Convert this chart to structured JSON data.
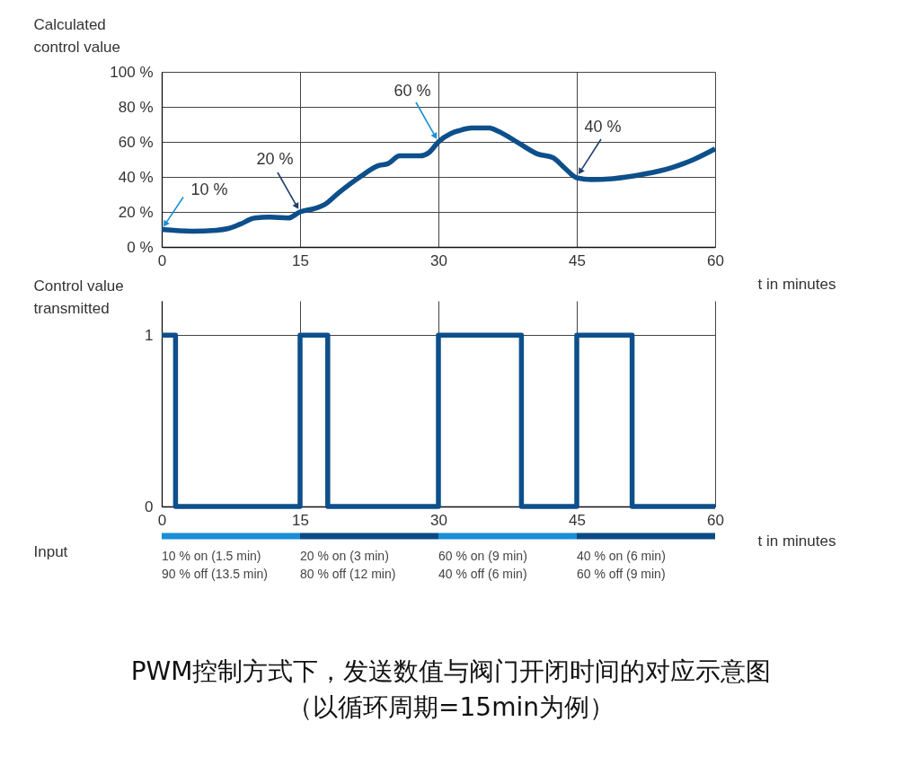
{
  "chart_data": [
    {
      "type": "line",
      "ylabel": "Calculated\ncontrol value",
      "xlabel": "t in minutes",
      "x": [
        0,
        3.3,
        5.9,
        7.2,
        8.5,
        10.1,
        11.7,
        13.7,
        15,
        16.6,
        17.6,
        19.2,
        21.5,
        23.5,
        24.5,
        25.8,
        28,
        29,
        30,
        32.6,
        33.6,
        35.5,
        36.5,
        38.8,
        40.8,
        42.4,
        43.7,
        45,
        46.6,
        48.9,
        52.2,
        55.4,
        57.7,
        60
      ],
      "series": [
        {
          "color": "#0d4f8b",
          "values": [
            10,
            9,
            9.5,
            10.5,
            13,
            16.5,
            17,
            16.5,
            20,
            22,
            24,
            31,
            40,
            46.5,
            47.5,
            52,
            52,
            54,
            60,
            67,
            68,
            68,
            66,
            59,
            53,
            51,
            45,
            39.5,
            38.5,
            39,
            41.5,
            45.5,
            50,
            56
          ]
        }
      ],
      "xlim": [
        0,
        60
      ],
      "xticks": [
        0,
        15,
        30,
        45,
        60
      ],
      "ylim": [
        0,
        100
      ],
      "yticks": [
        {
          "value": 0,
          "label": "0 %"
        },
        {
          "value": 20,
          "label": "20 %"
        },
        {
          "value": 40,
          "label": "40 %"
        },
        {
          "value": 60,
          "label": "60 %"
        },
        {
          "value": 80,
          "label": "80 %"
        },
        {
          "value": 100,
          "label": "100 %"
        }
      ],
      "grid": true,
      "annotations": [
        {
          "text": "10 %",
          "x": 0,
          "y": 10
        },
        {
          "text": "20 %",
          "x": 15,
          "y": 20
        },
        {
          "text": "60 %",
          "x": 30,
          "y": 60
        },
        {
          "text": "40 %",
          "x": 45,
          "y": 40
        }
      ]
    },
    {
      "type": "step",
      "ylabel": "Control value\ntransmitted",
      "xlabel": "t in minutes",
      "x": [
        0,
        1.5,
        15,
        18,
        30,
        39,
        45,
        51,
        60
      ],
      "series": [
        {
          "color": "#0d4f8b",
          "values": [
            1,
            0,
            1,
            0,
            1,
            0,
            1,
            0,
            0
          ]
        }
      ],
      "xlim": [
        0,
        60
      ],
      "xticks": [
        0,
        15,
        30,
        45,
        60
      ],
      "ylim": [
        0,
        1.2
      ],
      "yticks": [
        0,
        1
      ],
      "grid": true
    },
    {
      "type": "bar",
      "orientation": "horizontal",
      "stacked": true,
      "categories": [
        "Input"
      ],
      "series": [
        {
          "color": "#1b8ed6",
          "values": [
            15
          ]
        },
        {
          "color": "#0b4a84",
          "values": [
            15
          ]
        },
        {
          "color": "#1b8ed6",
          "values": [
            15
          ]
        },
        {
          "color": "#0b4a84",
          "values": [
            15
          ]
        }
      ],
      "xlim": [
        0,
        60
      ],
      "tick_labels": "y",
      "annotations": [
        "10 % on (1.5 min)\n90 % off (13.5 min)",
        "20 % on (3 min)\n80 % off (12 min)",
        "60 % on (9 min)\n40 % off (6 min)",
        "40 % on (6 min)\n60 % off (9 min)",
        "PWM控制方式下，发送数值与阀门开闭时间的对应示意图",
        "（以循环周期=15min为例）"
      ]
    }
  ]
}
